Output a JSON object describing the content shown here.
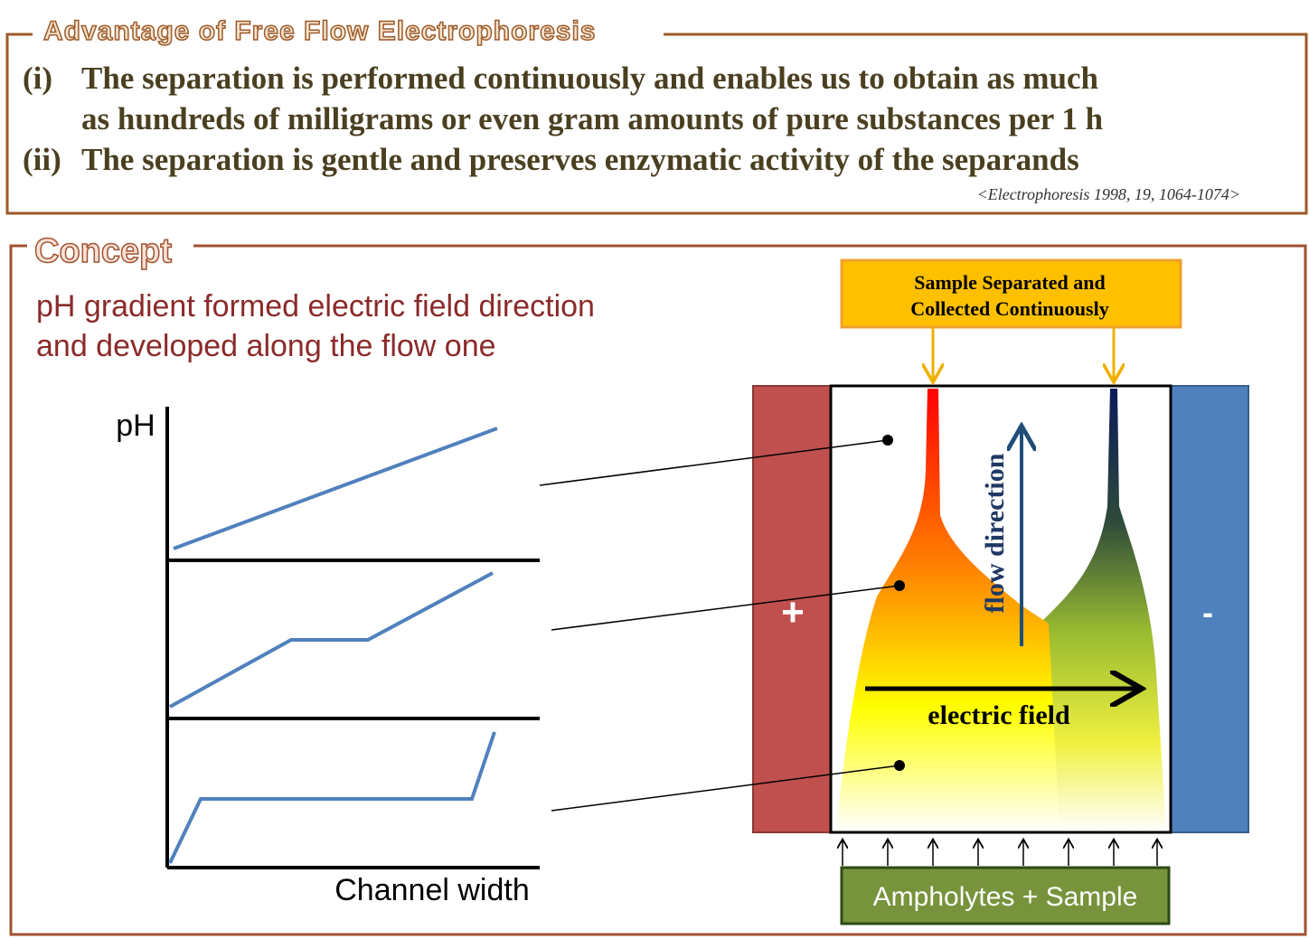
{
  "advantage": {
    "title": "Advantage of Free Flow Electrophoresis",
    "items": [
      {
        "marker": "(i)",
        "lines": [
          "The separation is performed continuously and enables us to obtain as much",
          "as hundreds of milligrams or even gram amounts of pure substances  per 1 h"
        ]
      },
      {
        "marker": "(ii)",
        "lines": [
          "The separation is gentle and preserves enzymatic activity of the separands"
        ]
      }
    ],
    "reference": "<Electrophoresis 1998, 19, 1064-1074>"
  },
  "concept": {
    "title": "Concept",
    "description": [
      "pH gradient formed electric field direction",
      "and developed along the flow one"
    ],
    "graph": {
      "y_label": "pH",
      "x_label": "Channel width"
    },
    "device": {
      "output_label": [
        "Sample Separated and",
        "Collected Continuously"
      ],
      "anode": "+",
      "cathode": "-",
      "flow_label": "flow direction",
      "field_label": "electric field",
      "input_label": "Ampholytes + Sample"
    }
  }
}
